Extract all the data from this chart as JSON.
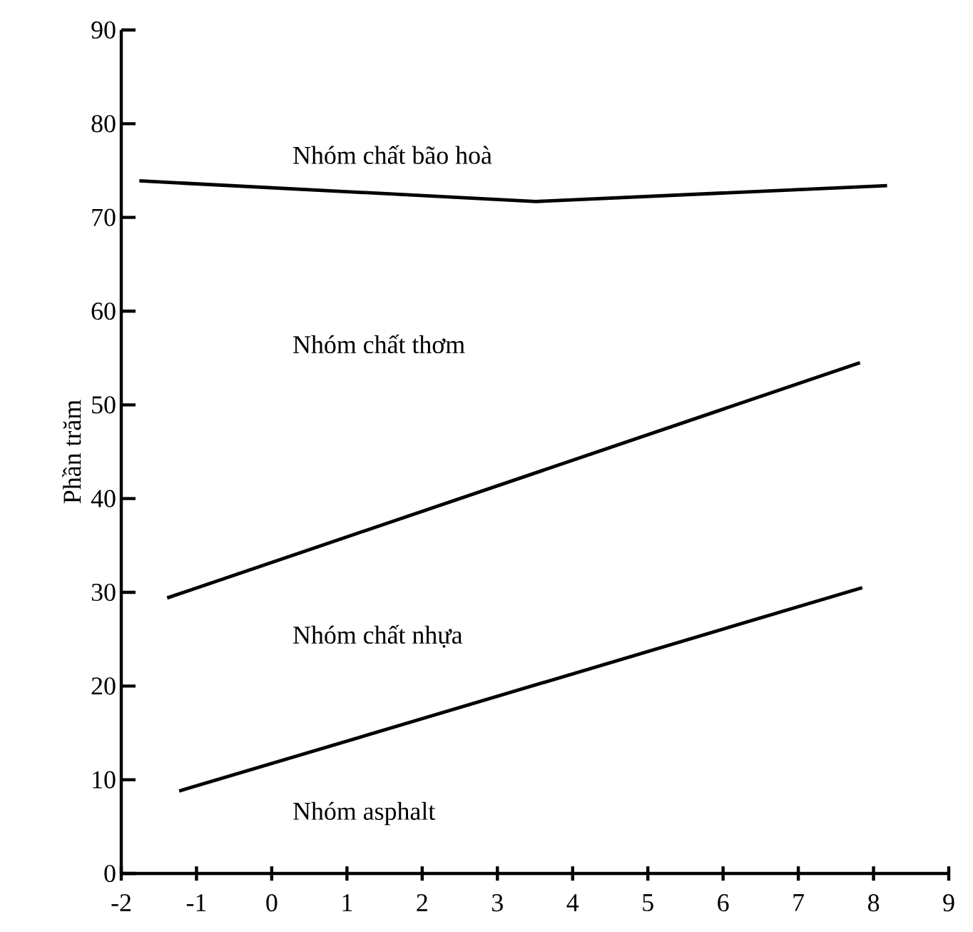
{
  "chart_data": {
    "type": "line",
    "ylabel": "Phần trăm",
    "xlim": [
      -2,
      9
    ],
    "ylim": [
      0,
      90
    ],
    "xticks": [
      -2,
      -1,
      0,
      1,
      2,
      3,
      4,
      5,
      6,
      7,
      8,
      9
    ],
    "yticks": [
      0,
      10,
      20,
      30,
      40,
      50,
      60,
      70,
      80,
      90
    ],
    "grid": false,
    "marker": "none",
    "line_style": "solid",
    "series": [
      {
        "color": "#000000",
        "x": [
          -1.76,
          3.51,
          8.18
        ],
        "values": [
          73.9,
          71.7,
          73.4
        ]
      },
      {
        "color": "#000000",
        "x": [
          -1.39,
          7.82
        ],
        "values": [
          29.4,
          54.5
        ]
      },
      {
        "color": "#000000",
        "x": [
          -1.23,
          7.85
        ],
        "values": [
          8.8,
          30.5
        ]
      }
    ],
    "annotations": [
      "Nhóm chất bão hoà",
      "Nhóm chất thơm",
      "Nhóm chất nhựa",
      "Nhóm asphalt"
    ]
  }
}
